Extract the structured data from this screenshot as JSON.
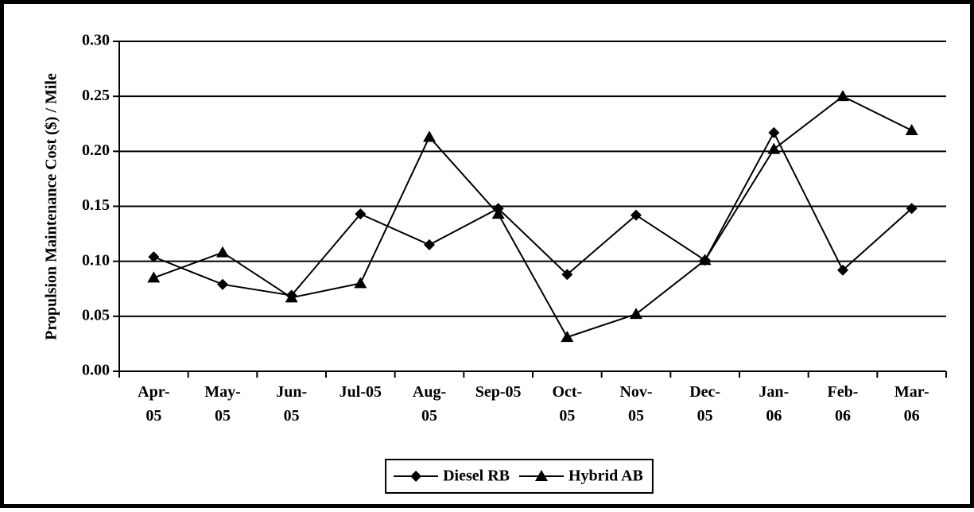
{
  "chart_data": {
    "type": "line",
    "ylabel": "Propulsion Maintenance Cost ($) / Mile",
    "categories": [
      "Apr-\n05",
      "May-\n05",
      "Jun-\n05",
      "Jul-05",
      "Aug-\n05",
      "Sep-05",
      "Oct-\n05",
      "Nov-\n05",
      "Dec-\n05",
      "Jan-\n06",
      "Feb-\n06",
      "Mar-\n06"
    ],
    "series": [
      {
        "name": "Diesel RB",
        "color": "#000000",
        "marker": "diamond",
        "values": [
          0.104,
          0.079,
          0.069,
          0.143,
          0.115,
          0.148,
          0.088,
          0.142,
          0.101,
          0.217,
          0.092,
          0.148
        ]
      },
      {
        "name": "Hybrid AB",
        "color": "#000000",
        "marker": "triangle",
        "values": [
          0.085,
          0.108,
          0.067,
          0.08,
          0.213,
          0.143,
          0.031,
          0.052,
          0.101,
          0.202,
          0.25,
          0.219
        ]
      }
    ],
    "ylim": [
      0,
      0.3
    ],
    "yticks": [
      {
        "value": 0,
        "label": "0.00"
      },
      {
        "value": 0.05,
        "label": "0.05"
      },
      {
        "value": 0.1,
        "label": "0.10"
      },
      {
        "value": 0.15,
        "label": "0.15"
      },
      {
        "value": 0.2,
        "label": "0.20"
      },
      {
        "value": 0.25,
        "label": "0.25"
      },
      {
        "value": 0.3,
        "label": "0.30"
      }
    ],
    "grid": true,
    "legend": "bottom"
  }
}
